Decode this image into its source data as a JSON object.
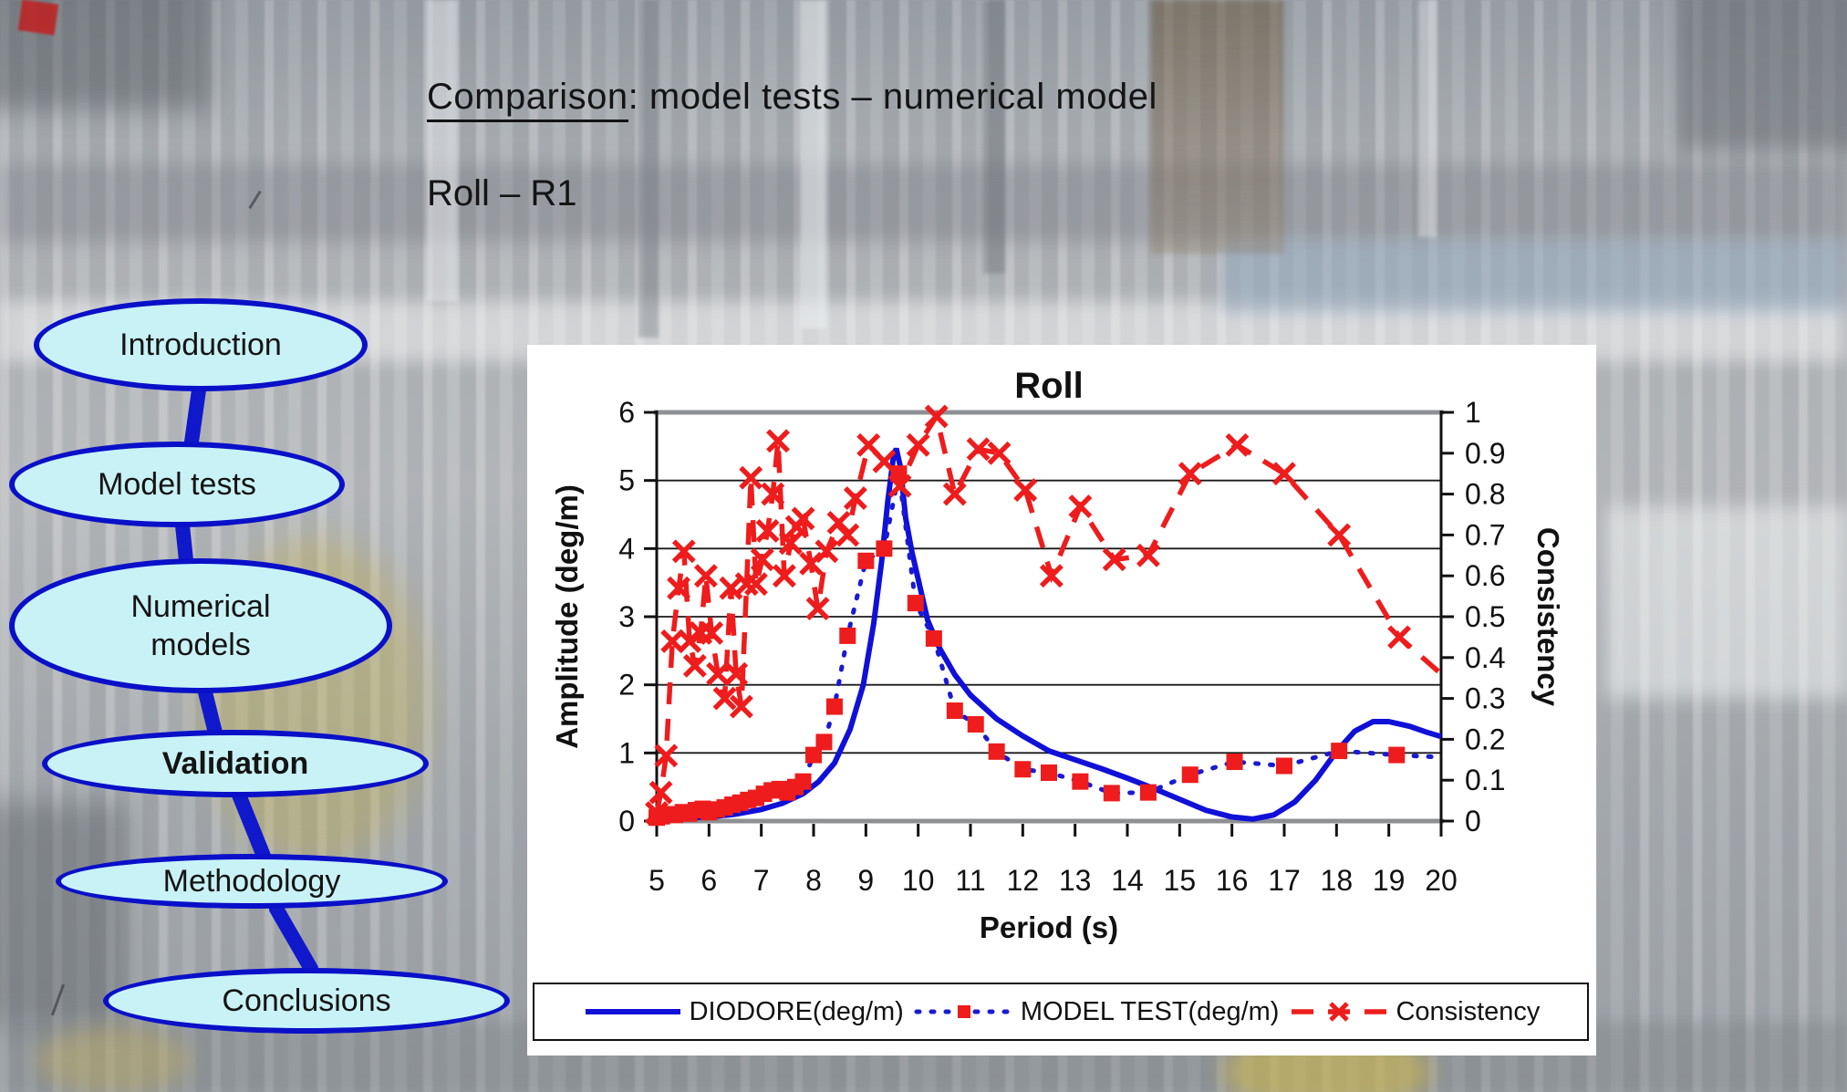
{
  "slide": {
    "title_underlined": "Comparison",
    "title_rest": ": model tests – numerical model",
    "subtitle": "Roll – R1"
  },
  "nav": {
    "items": [
      {
        "label": "Introduction",
        "bold": false
      },
      {
        "label": "Model tests",
        "bold": false
      },
      {
        "label": "Numerical\nmodels",
        "bold": false
      },
      {
        "label": "Validation",
        "bold": true
      },
      {
        "label": "Methodology",
        "bold": false
      },
      {
        "label": "Conclusions",
        "bold": false
      }
    ]
  },
  "chart_data": {
    "type": "line",
    "title": "Roll",
    "xlabel": "Period (s)",
    "ylabel_left": "Amplitude (deg/m)",
    "ylabel_right": "Consistency",
    "legend_position": "bottom",
    "grid": "horizontal",
    "x_axis": {
      "min": 5,
      "max": 20,
      "ticks": [
        "5",
        "6",
        "7",
        "8",
        "9",
        "10",
        "11",
        "12",
        "13",
        "14",
        "15",
        "16",
        "17",
        "18",
        "19",
        "20"
      ]
    },
    "y_left": {
      "min": 0,
      "max": 6,
      "ticks": [
        "0",
        "1",
        "2",
        "3",
        "4",
        "5",
        "6"
      ],
      "gridlines": [
        1,
        2,
        3,
        4,
        5
      ]
    },
    "y_right": {
      "min": 0,
      "max": 1,
      "ticks": [
        "0",
        "0.1",
        "0.2",
        "0.3",
        "0.4",
        "0.5",
        "0.6",
        "0.7",
        "0.8",
        "0.9",
        "1"
      ]
    },
    "series": [
      {
        "name": "DIODORE(deg/m)",
        "axis": "left",
        "color": "#1010d8",
        "dash": "",
        "linecap": "butt",
        "width": 6,
        "marker": "none",
        "marker_color": "",
        "points": [
          [
            5,
            0.03
          ],
          [
            5.5,
            0.04
          ],
          [
            6,
            0.06
          ],
          [
            6.5,
            0.1
          ],
          [
            7,
            0.17
          ],
          [
            7.4,
            0.26
          ],
          [
            7.8,
            0.4
          ],
          [
            8.1,
            0.58
          ],
          [
            8.4,
            0.85
          ],
          [
            8.7,
            1.35
          ],
          [
            8.95,
            2.0
          ],
          [
            9.15,
            2.9
          ],
          [
            9.3,
            3.8
          ],
          [
            9.42,
            4.7
          ],
          [
            9.52,
            5.3
          ],
          [
            9.58,
            5.47
          ],
          [
            9.66,
            5.2
          ],
          [
            9.76,
            4.45
          ],
          [
            9.88,
            3.95
          ],
          [
            10.0,
            3.55
          ],
          [
            10.18,
            2.95
          ],
          [
            10.4,
            2.55
          ],
          [
            10.7,
            2.15
          ],
          [
            11.0,
            1.85
          ],
          [
            11.5,
            1.5
          ],
          [
            12.0,
            1.25
          ],
          [
            12.5,
            1.03
          ],
          [
            13.0,
            0.9
          ],
          [
            13.5,
            0.77
          ],
          [
            14.0,
            0.63
          ],
          [
            14.5,
            0.48
          ],
          [
            15.0,
            0.32
          ],
          [
            15.5,
            0.16
          ],
          [
            16.0,
            0.06
          ],
          [
            16.4,
            0.03
          ],
          [
            16.8,
            0.09
          ],
          [
            17.2,
            0.28
          ],
          [
            17.6,
            0.6
          ],
          [
            18.0,
            1.02
          ],
          [
            18.35,
            1.32
          ],
          [
            18.7,
            1.46
          ],
          [
            19.0,
            1.46
          ],
          [
            19.4,
            1.39
          ],
          [
            19.7,
            1.31
          ],
          [
            20,
            1.24
          ]
        ]
      },
      {
        "name": "MODEL TEST(deg/m)",
        "axis": "left",
        "color": "#1a1ad2",
        "dash": "3 13",
        "linecap": "round",
        "width": 5,
        "marker": "square",
        "marker_color": "#ee1c1c",
        "points": [
          [
            5,
            0.05
          ],
          [
            5.1,
            0.07
          ],
          [
            5.2,
            0.1
          ],
          [
            5.35,
            0.09
          ],
          [
            5.5,
            0.13
          ],
          [
            5.62,
            0.11
          ],
          [
            5.75,
            0.16
          ],
          [
            5.88,
            0.18
          ],
          [
            6.0,
            0.13
          ],
          [
            6.15,
            0.17
          ],
          [
            6.3,
            0.2
          ],
          [
            6.45,
            0.24
          ],
          [
            6.6,
            0.27
          ],
          [
            6.75,
            0.31
          ],
          [
            6.9,
            0.34
          ],
          [
            7.05,
            0.4
          ],
          [
            7.2,
            0.45
          ],
          [
            7.35,
            0.47
          ],
          [
            7.5,
            0.42
          ],
          [
            7.65,
            0.5
          ],
          [
            7.8,
            0.58
          ],
          [
            8.0,
            0.97
          ],
          [
            8.2,
            1.16
          ],
          [
            8.4,
            1.68
          ],
          [
            8.65,
            2.72
          ],
          [
            9.0,
            3.82
          ],
          [
            9.35,
            4.0
          ],
          [
            9.63,
            5.1
          ],
          [
            9.95,
            3.2
          ],
          [
            10.3,
            2.68
          ],
          [
            10.7,
            1.62
          ],
          [
            11.1,
            1.42
          ],
          [
            11.5,
            1.02
          ],
          [
            12.0,
            0.76
          ],
          [
            12.5,
            0.71
          ],
          [
            13.1,
            0.58
          ],
          [
            13.7,
            0.41
          ],
          [
            14.4,
            0.42
          ],
          [
            15.2,
            0.68
          ],
          [
            16.05,
            0.87
          ],
          [
            17.0,
            0.81
          ],
          [
            18.05,
            1.03
          ],
          [
            19.15,
            0.97
          ]
        ],
        "trail": [
          [
            19.9,
            0.94
          ]
        ]
      },
      {
        "name": "Consistency",
        "axis": "right",
        "color": "#ee1c1c",
        "dash": "24 16",
        "linecap": "butt",
        "width": 5.5,
        "marker": "x",
        "marker_color": "#ee1c1c",
        "points": [
          [
            5,
            0.02
          ],
          [
            5.08,
            0.07
          ],
          [
            5.18,
            0.16
          ],
          [
            5.3,
            0.44
          ],
          [
            5.42,
            0.57
          ],
          [
            5.52,
            0.66
          ],
          [
            5.63,
            0.44
          ],
          [
            5.73,
            0.38
          ],
          [
            5.84,
            0.46
          ],
          [
            5.94,
            0.6
          ],
          [
            6.05,
            0.46
          ],
          [
            6.17,
            0.36
          ],
          [
            6.3,
            0.3
          ],
          [
            6.42,
            0.57
          ],
          [
            6.52,
            0.36
          ],
          [
            6.62,
            0.28
          ],
          [
            6.72,
            0.58
          ],
          [
            6.8,
            0.84
          ],
          [
            6.9,
            0.58
          ],
          [
            7.02,
            0.64
          ],
          [
            7.12,
            0.71
          ],
          [
            7.22,
            0.8
          ],
          [
            7.32,
            0.93
          ],
          [
            7.44,
            0.6
          ],
          [
            7.56,
            0.68
          ],
          [
            7.68,
            0.72
          ],
          [
            7.8,
            0.74
          ],
          [
            7.95,
            0.63
          ],
          [
            8.08,
            0.52
          ],
          [
            8.25,
            0.66
          ],
          [
            8.48,
            0.73
          ],
          [
            8.65,
            0.7
          ],
          [
            8.8,
            0.79
          ],
          [
            9.05,
            0.92
          ],
          [
            9.35,
            0.88
          ],
          [
            9.65,
            0.82
          ],
          [
            10.0,
            0.92
          ],
          [
            10.35,
            0.99
          ],
          [
            10.7,
            0.8
          ],
          [
            11.15,
            0.91
          ],
          [
            11.55,
            0.9
          ],
          [
            12.05,
            0.81
          ],
          [
            12.55,
            0.6
          ],
          [
            13.1,
            0.77
          ],
          [
            13.75,
            0.64
          ],
          [
            14.4,
            0.65
          ],
          [
            15.2,
            0.85
          ],
          [
            16.1,
            0.92
          ],
          [
            17.0,
            0.85
          ],
          [
            18.05,
            0.7
          ],
          [
            19.2,
            0.45
          ]
        ],
        "trail": [
          [
            20,
            0.36
          ]
        ]
      }
    ]
  }
}
